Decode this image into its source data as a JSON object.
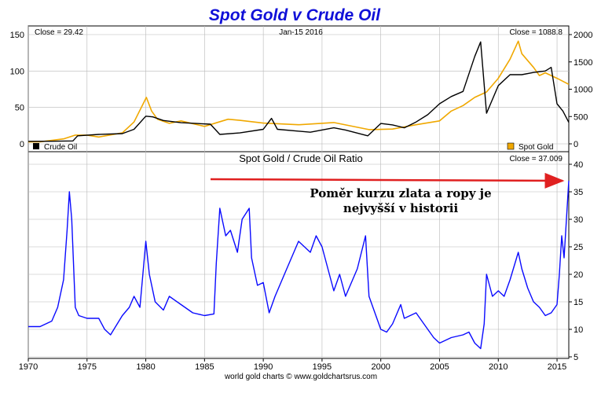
{
  "chart_title": "Spot Gold v Crude Oil",
  "colors": {
    "title": "#1010d8",
    "oil": "#000000",
    "gold": "#f0a800",
    "ratio": "#0a0aff",
    "arrow": "#e02020",
    "grid": "#b8b8b8"
  },
  "chart_data": [
    {
      "type": "line",
      "title": "Spot Gold v Crude Oil",
      "date_label": "Jan-15  2016",
      "left_readout": "Close = 29.42",
      "right_readout": "Close = 1088.8",
      "y_left_ticks": [
        "150",
        "100",
        "50",
        "0"
      ],
      "y_left_lim": [
        0,
        150
      ],
      "y_right_ticks": [
        "2000",
        "1500",
        "1000",
        "500",
        "0"
      ],
      "y_right_lim": [
        0,
        2000
      ],
      "xlim": [
        1970,
        2016
      ],
      "grid": true,
      "legend": [
        {
          "name": "Crude Oil",
          "color": "#000000",
          "placement": "bottom-left"
        },
        {
          "name": "Spot Gold",
          "color": "#f0a800",
          "placement": "bottom-right"
        }
      ],
      "series": [
        {
          "name": "Crude Oil",
          "axis": "left",
          "color": "#000000",
          "x": [
            1970,
            1972,
            1973.8,
            1974.2,
            1976,
            1978,
            1979,
            1980,
            1980.6,
            1981.5,
            1983,
            1985.5,
            1986.3,
            1988,
            1990,
            1990.7,
            1991.2,
            1994,
            1996,
            1997,
            1998.9,
            2000,
            2001,
            2002,
            2003,
            2004,
            2005,
            2006,
            2007,
            2008,
            2008.5,
            2009,
            2010,
            2011,
            2012,
            2013,
            2014,
            2014.5,
            2015,
            2015.5,
            2016
          ],
          "values": [
            3.5,
            3.6,
            4,
            11,
            13,
            14,
            20,
            38,
            37,
            32,
            29,
            27,
            13,
            15,
            20,
            35,
            20,
            16,
            22,
            19,
            11,
            28,
            26,
            22,
            30,
            40,
            55,
            65,
            72,
            120,
            140,
            42,
            80,
            95,
            95,
            98,
            100,
            105,
            55,
            45,
            29.42
          ]
        },
        {
          "name": "Spot Gold",
          "axis": "right",
          "color": "#f0a800",
          "x": [
            1970,
            1971,
            1973,
            1974,
            1975,
            1976,
            1978,
            1979,
            1980.05,
            1980.5,
            1981,
            1982,
            1983,
            1985,
            1987,
            1988,
            1990,
            1993,
            1996,
            1999,
            2001,
            2003,
            2005,
            2006,
            2007,
            2008,
            2009,
            2010,
            2011,
            2011.7,
            2012,
            2013,
            2013.5,
            2014,
            2015,
            2016
          ],
          "values": [
            35,
            38,
            90,
            160,
            160,
            125,
            200,
            400,
            850,
            600,
            450,
            375,
            420,
            320,
            450,
            430,
            380,
            350,
            390,
            260,
            270,
            350,
            420,
            600,
            700,
            850,
            950,
            1200,
            1550,
            1880,
            1650,
            1400,
            1250,
            1300,
            1200,
            1088.8
          ]
        }
      ]
    },
    {
      "type": "line",
      "title": "Spot Gold  /  Crude Oil Ratio",
      "right_readout": "Close = 37.009",
      "xlim": [
        1970,
        2016
      ],
      "x_ticks": [
        "1970",
        "1975",
        "1980",
        "1985",
        "1990",
        "1995",
        "2000",
        "2005",
        "2010",
        "2015"
      ],
      "ylim": [
        5,
        40
      ],
      "y_ticks": [
        "40",
        "35",
        "30",
        "25",
        "20",
        "15",
        "10",
        "5"
      ],
      "grid": true,
      "annotation": [
        "Poměr kurzu zlata a ropy je",
        "nejvyšší v historii"
      ],
      "source": "world gold charts © www.goldchartsrus.com",
      "series": [
        {
          "name": "",
          "color": "#0a0aff",
          "x": [
            1970,
            1971,
            1972,
            1972.5,
            1973,
            1973.3,
            1973.5,
            1973.7,
            1974,
            1974.3,
            1975,
            1976,
            1976.5,
            1977,
            1978,
            1978.6,
            1979,
            1979.5,
            1980,
            1980.3,
            1980.8,
            1981.5,
            1982,
            1983,
            1984,
            1985,
            1985.8,
            1986,
            1986.3,
            1986.8,
            1987.2,
            1987.8,
            1988.2,
            1988.8,
            1989,
            1989.5,
            1990,
            1990.5,
            1991,
            1992,
            1993,
            1994,
            1994.5,
            1995,
            1996,
            1996.5,
            1997,
            1998,
            1998.7,
            1999,
            2000,
            2000.5,
            2001,
            2001.7,
            2002,
            2003,
            2004,
            2004.5,
            2005,
            2006,
            2007,
            2007.5,
            2008,
            2008.5,
            2008.8,
            2009,
            2009.5,
            2010,
            2010.5,
            2011,
            2011.7,
            2012,
            2012.5,
            2013,
            2013.5,
            2014,
            2014.5,
            2015,
            2015.2,
            2015.4,
            2015.6,
            2015.8,
            2016
          ],
          "values": [
            10.5,
            10.5,
            11.5,
            14,
            19,
            28,
            35,
            30,
            14,
            12.5,
            12,
            12,
            10,
            9,
            12.5,
            14,
            16,
            14,
            26,
            20,
            15,
            13.5,
            16,
            14.5,
            13,
            12.5,
            12.8,
            22,
            32,
            27,
            28,
            24,
            30,
            32,
            23,
            18,
            18.5,
            13,
            16,
            21,
            26,
            24,
            27,
            25,
            17,
            20,
            16,
            21,
            27,
            16,
            10,
            9.5,
            11,
            14.5,
            12,
            13,
            10,
            8.5,
            7.5,
            8.5,
            9,
            9.5,
            7.5,
            6.5,
            11,
            20,
            16,
            17,
            16,
            19,
            24,
            21,
            17.5,
            15,
            14,
            12.5,
            13,
            14.5,
            20,
            27,
            23,
            30,
            37.009
          ]
        }
      ]
    }
  ]
}
